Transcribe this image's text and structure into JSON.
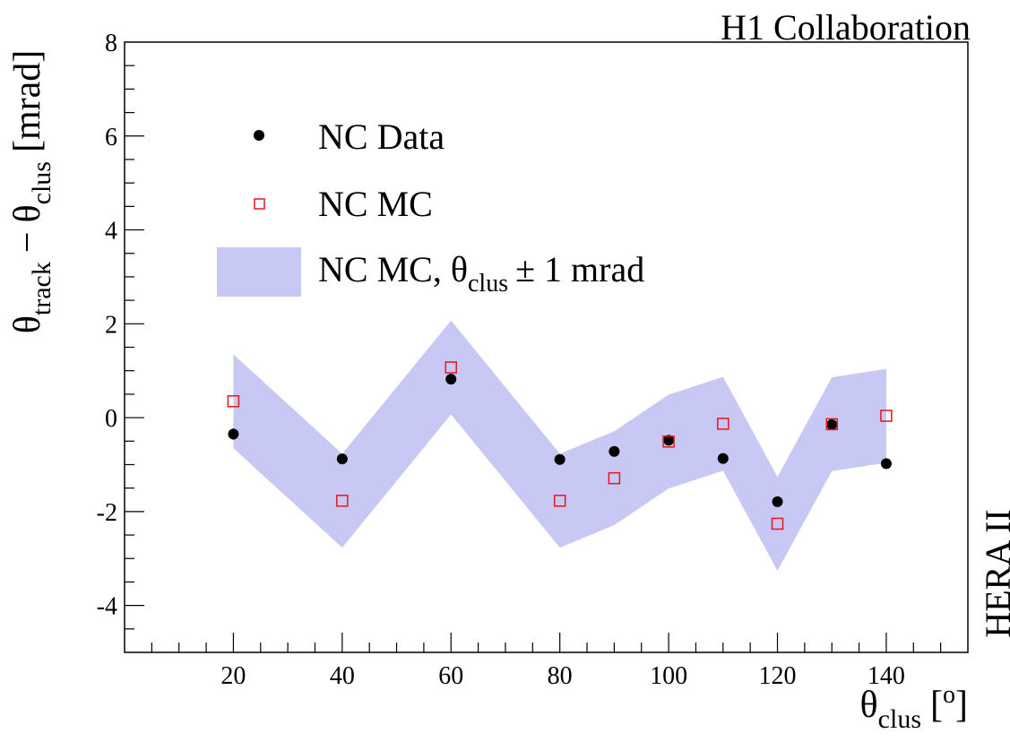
{
  "corner_labels": {
    "top_right": "H1 Collaboration",
    "right_vertical": "HERA II"
  },
  "colors": {
    "band": "#c8c8f5",
    "data_marker": "#000000",
    "mc_marker": "#e8161b",
    "axis": "#000000"
  },
  "chart_data": {
    "type": "scatter",
    "xlabel": {
      "symbol": "θ",
      "subscript": "clus",
      "unit": "[o]",
      "unit_base": "[",
      "unit_sup": "o",
      "unit_close": "]"
    },
    "ylabel": {
      "symbol1": "θ",
      "sub1": "track",
      "minus": "−",
      "symbol2": "θ",
      "sub2": "clus",
      "unit": "[mrad]"
    },
    "xlim": [
      0,
      155
    ],
    "ylim": [
      -5,
      8
    ],
    "x_ticks": [
      20,
      40,
      60,
      80,
      100,
      120,
      140
    ],
    "y_ticks": [
      -4,
      -2,
      0,
      2,
      4,
      6,
      8
    ],
    "y_tick_labels": [
      "-4",
      "-2",
      "0",
      "2",
      "4",
      "6",
      "8"
    ],
    "x_tick_labels": [
      "20",
      "40",
      "60",
      "80",
      "100",
      "120",
      "140"
    ],
    "grid": false,
    "legend": {
      "placement": "top-left",
      "entries": [
        {
          "label": "NC Data",
          "marker": "filled-circle"
        },
        {
          "label": "NC MC",
          "marker": "open-square"
        },
        {
          "label": "NC MC, θ",
          "label_sub": "clus",
          "label_tail": "± 1 mrad",
          "marker": "band"
        }
      ]
    },
    "series": [
      {
        "name": "NC Data",
        "marker": "filled-circle",
        "x": [
          20,
          40,
          60,
          80,
          90,
          100,
          110,
          120,
          130,
          140
        ],
        "y": [
          -0.35,
          -0.88,
          0.82,
          -0.89,
          -0.72,
          -0.48,
          -0.87,
          -1.79,
          -0.15,
          -0.98
        ],
        "yerr": [
          0.12,
          0.04,
          0.04,
          0.04,
          0.04,
          0.06,
          0.04,
          0.04,
          0.06,
          0.04
        ]
      },
      {
        "name": "NC MC",
        "marker": "open-square",
        "x": [
          20,
          40,
          60,
          80,
          90,
          100,
          110,
          120,
          130,
          140
        ],
        "y": [
          0.35,
          -1.77,
          1.07,
          -1.77,
          -1.29,
          -0.51,
          -0.13,
          -2.26,
          -0.14,
          0.04
        ]
      },
      {
        "name": "NC MC, θclus ± 1 mrad",
        "marker": "band",
        "x": [
          20,
          40,
          60,
          80,
          90,
          100,
          110,
          120,
          130,
          140
        ],
        "upper": [
          1.35,
          -0.77,
          2.07,
          -0.77,
          -0.29,
          0.49,
          0.87,
          -1.26,
          0.86,
          1.04
        ],
        "lower": [
          -0.65,
          -2.77,
          0.07,
          -2.77,
          -2.29,
          -1.51,
          -1.13,
          -3.26,
          -1.14,
          -0.96
        ]
      }
    ]
  }
}
